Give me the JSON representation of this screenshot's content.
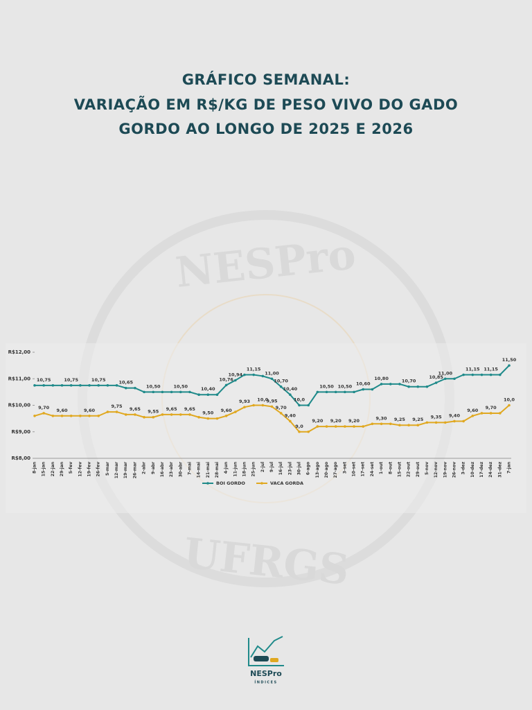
{
  "title_lines": [
    "GRÁFICO SEMANAL:",
    "VARIAÇÃO EM R$/KG DE PESO VIVO DO GADO",
    "GORDO AO LONGO DE 2025 E 2026"
  ],
  "watermark": {
    "top": "NESPro",
    "bottom": "UFRGS"
  },
  "logo": {
    "name": "NESPro",
    "caption": "ÍNDICES"
  },
  "chart_data": {
    "type": "line",
    "categories": [
      "8-jan",
      "15-jan",
      "22-jan",
      "29-jan",
      "5-fev",
      "12-fev",
      "19-fev",
      "26-fev",
      "5-mar",
      "12-mar",
      "19-mar",
      "26-mar",
      "2-abr",
      "9-abr",
      "16-abr",
      "23-abr",
      "30-abr",
      "7-mai",
      "14-mai",
      "21-mai",
      "28-mai",
      "4-jun",
      "11-jun",
      "18-jun",
      "25-jun",
      "2-jul",
      "9-jul",
      "16-jul",
      "23-jul",
      "30-jul",
      "6-ago",
      "13-ago",
      "20-ago",
      "27-ago",
      "3-set",
      "10-set",
      "17-set",
      "24-set",
      "1-out",
      "8-out",
      "15-out",
      "22-out",
      "29-out",
      "5-nov",
      "12-nov",
      "19-nov",
      "26-nov",
      "3-dez",
      "10-dez",
      "17-dez",
      "24-dez",
      "31-dez",
      "7-jan"
    ],
    "series": [
      {
        "name": "BOI GORDO",
        "color": "#1f8a8a",
        "values": [
          10.75,
          10.75,
          10.75,
          10.75,
          10.75,
          10.75,
          10.75,
          10.75,
          10.75,
          10.75,
          10.65,
          10.65,
          10.5,
          10.5,
          10.5,
          10.5,
          10.5,
          10.5,
          10.4,
          10.4,
          10.4,
          10.76,
          10.94,
          11.15,
          11.15,
          11.1,
          11.0,
          10.7,
          10.4,
          10.0,
          10.0,
          10.5,
          10.5,
          10.5,
          10.5,
          10.5,
          10.6,
          10.6,
          10.8,
          10.8,
          10.8,
          10.7,
          10.7,
          10.7,
          10.85,
          11.0,
          11.0,
          11.15,
          11.15,
          11.15,
          11.15,
          11.15,
          11.5
        ],
        "value_labels": [
          null,
          "10,75",
          null,
          null,
          "10,75",
          null,
          null,
          "10,75",
          null,
          null,
          "10,65",
          null,
          null,
          "10,50",
          null,
          null,
          "10,50",
          null,
          null,
          "10,40",
          null,
          "10,76",
          "10,94",
          null,
          "11,15",
          null,
          "11,00",
          "10,70",
          "10,40",
          "10,0",
          null,
          null,
          "10,50",
          null,
          "10,50",
          null,
          "10,60",
          null,
          "10,80",
          null,
          null,
          "10,70",
          null,
          null,
          "10,85",
          "11,00",
          null,
          null,
          "11,15",
          null,
          "11,15",
          null,
          "11,50"
        ]
      },
      {
        "name": "VACA GORDA",
        "color": "#e0a820",
        "values": [
          9.6,
          9.7,
          9.6,
          9.6,
          9.6,
          9.6,
          9.6,
          9.6,
          9.75,
          9.75,
          9.65,
          9.65,
          9.55,
          9.55,
          9.65,
          9.65,
          9.65,
          9.65,
          9.55,
          9.5,
          9.5,
          9.6,
          9.75,
          9.93,
          10.0,
          10.0,
          9.95,
          9.7,
          9.4,
          9.0,
          9.0,
          9.2,
          9.2,
          9.2,
          9.2,
          9.2,
          9.2,
          9.3,
          9.3,
          9.3,
          9.25,
          9.25,
          9.25,
          9.35,
          9.35,
          9.35,
          9.4,
          9.4,
          9.6,
          9.7,
          9.7,
          9.7,
          10.0
        ],
        "value_labels": [
          null,
          "9,70",
          null,
          "9,60",
          null,
          null,
          "9,60",
          null,
          null,
          "9,75",
          null,
          "9,65",
          null,
          "9,55",
          null,
          "9,65",
          null,
          "9,65",
          null,
          "9,50",
          null,
          "9,60",
          null,
          "9,93",
          null,
          "10,0",
          "9,95",
          "9,70",
          "9,40",
          "9,0",
          null,
          "9,20",
          null,
          "9,20",
          null,
          "9,20",
          null,
          null,
          "9,30",
          null,
          "9,25",
          null,
          "9,25",
          null,
          "9,35",
          null,
          "9,40",
          null,
          "9,60",
          null,
          "9,70",
          null,
          "10,0"
        ]
      }
    ],
    "ylim": [
      8,
      12
    ],
    "yticks": [
      {
        "value": 8,
        "label": "R$8,00"
      },
      {
        "value": 9,
        "label": "R$9,00"
      },
      {
        "value": 10,
        "label": "R$10,00"
      },
      {
        "value": 11,
        "label": "R$11,00"
      },
      {
        "value": 12,
        "label": "R$12,00"
      }
    ],
    "legend": "bottom"
  }
}
